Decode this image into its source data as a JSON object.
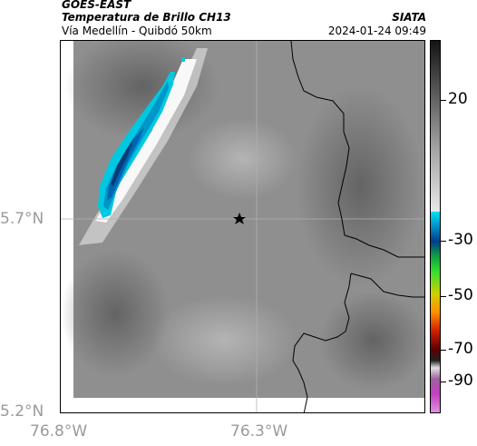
{
  "header": {
    "satellite": "GOES-EAST",
    "product": "Temperatura de Brillo CH13",
    "route": "Vía Medellín - Quibdó 50km",
    "organization": "SIATA",
    "timestamp": "2024-01-24 09:49"
  },
  "axes": {
    "lat_labels": [
      "5.7°N",
      "5.2°N"
    ],
    "lon_labels": [
      "76.8°W",
      "76.3°W"
    ],
    "label_color": "#9a9a9a",
    "gridline_color": "#b0b0b0"
  },
  "colorbar": {
    "ticks": [
      "20",
      "-30",
      "-50",
      "-70",
      "-90"
    ],
    "description": "brightness temperature scale"
  },
  "map": {
    "marker_icon": "star-icon",
    "marker_color": "#000000",
    "cloud_colors": [
      "#00c8e0",
      "#0096c8",
      "#0064b4",
      "#1e5aa0",
      "#0a3c78"
    ]
  }
}
